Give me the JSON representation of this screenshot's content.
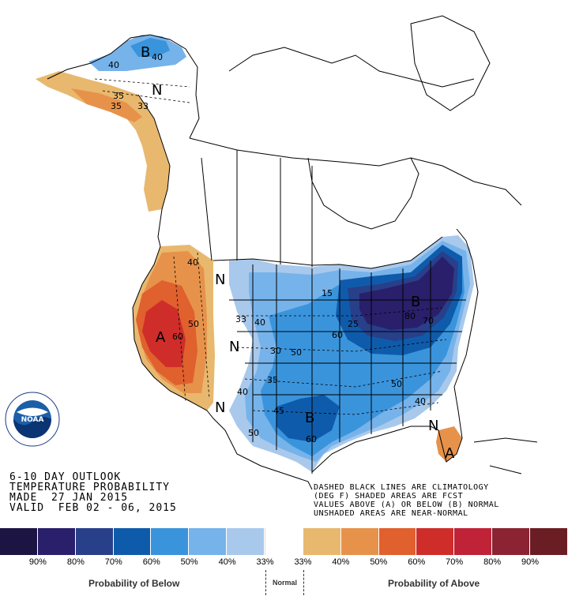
{
  "title_lines": [
    "6-10 DAY OUTLOOK",
    "TEMPERATURE PROBABILITY",
    "MADE  27 JAN 2015",
    "VALID  FEB 02 - 06, 2015"
  ],
  "notes": [
    "DASHED BLACK LINES ARE CLIMATOLOGY",
    "(DEG F) SHADED AREAS ARE FCST",
    "VALUES ABOVE (A) OR BELOW (B) NORMAL",
    "UNSHADED AREAS ARE NEAR-NORMAL"
  ],
  "logo_text": "NOAA",
  "map_labels": {
    "b_alaska": "B",
    "n_alaska": "N",
    "a_west": "A",
    "n_west1": "N",
    "n_west2": "N",
    "n_west3": "N",
    "b_northeast": "B",
    "b_south": "B",
    "n_florida": "N",
    "a_florida": "A",
    "c40_ak": "40",
    "c40_ak2": "40",
    "c35_ak": "35",
    "c33_ak": "33",
    "c35_ak2": "35",
    "c40_w": "40",
    "c50_w": "50",
    "c60_w": "60",
    "c33_c": "33",
    "c40_c": "40",
    "c30_c": "30",
    "c50_c": "50",
    "c35_c": "35",
    "c40_s": "40",
    "c45_s": "45",
    "c50_s": "50",
    "c60_s": "60",
    "c60_ne": "60",
    "c25_ne": "25",
    "c15_ne": "15",
    "c80_ne": "80",
    "c70_ne": "70",
    "c50_se": "50",
    "c40_se": "40"
  },
  "legend": {
    "colors": [
      "#1c1544",
      "#2a1f6b",
      "#283f8a",
      "#0f5bab",
      "#3a94dc",
      "#76b3ea",
      "#a8c9ec",
      "#ffffff",
      "#e8b86e",
      "#e7924b",
      "#e0602e",
      "#cf2d2a",
      "#c02238",
      "#8b2332",
      "#6b1d24"
    ],
    "ticks": [
      "90%",
      "80%",
      "70%",
      "60%",
      "50%",
      "40%",
      "33%",
      "33%",
      "40%",
      "50%",
      "60%",
      "70%",
      "80%",
      "90%"
    ],
    "below_label": "Probability of Below",
    "normal_label": "Normal",
    "above_label": "Probability of Above"
  }
}
